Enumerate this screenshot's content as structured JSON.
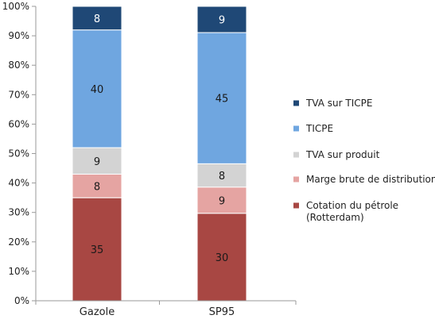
{
  "chart_data": {
    "type": "bar",
    "stacked": true,
    "percent_stacked": true,
    "categories": [
      "Gazole",
      "SP95"
    ],
    "series": [
      {
        "name": "Cotation du pétrole (Rotterdam)",
        "legend_lines": [
          "Cotation du pétrole",
          "(Rotterdam)"
        ],
        "values": [
          35,
          30
        ],
        "color": "#A84743",
        "label_color": "#1a1a1a"
      },
      {
        "name": "Marge brute de distribution",
        "legend_lines": [
          "Marge brute de distribution"
        ],
        "values": [
          8,
          9
        ],
        "color": "#E5A4A2",
        "label_color": "#1a1a1a"
      },
      {
        "name": "TVA sur produit",
        "legend_lines": [
          "TVA sur produit"
        ],
        "values": [
          9,
          8
        ],
        "color": "#D3D3D3",
        "label_color": "#1a1a1a"
      },
      {
        "name": "TICPE",
        "legend_lines": [
          "TICPE"
        ],
        "values": [
          40,
          45
        ],
        "color": "#6FA6E0",
        "label_color": "#1a1a1a"
      },
      {
        "name": "TVA sur TICPE",
        "legend_lines": [
          "TVA sur TICPE"
        ],
        "values": [
          8,
          9
        ],
        "color": "#1F4876",
        "label_color": "#ffffff"
      }
    ],
    "y_ticks": [
      "0%",
      "10%",
      "20%",
      "30%",
      "40%",
      "50%",
      "60%",
      "70%",
      "80%",
      "90%",
      "100%"
    ],
    "ylim": [
      0,
      100
    ],
    "legend_position": "right",
    "grid": false
  }
}
